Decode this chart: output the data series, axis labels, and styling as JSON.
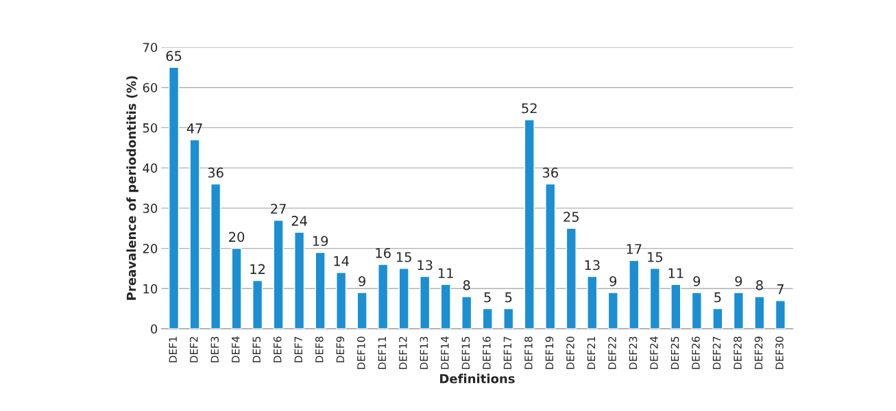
{
  "chart_data": {
    "type": "bar",
    "xlabel": "Definitions",
    "ylabel": "Preavalence of periodontitis (%)",
    "categories": [
      "DEF1",
      "DEF2",
      "DEF3",
      "DEF4",
      "DEF5",
      "DEF6",
      "DEF7",
      "DEF8",
      "DEF9",
      "DEF10",
      "DEF11",
      "DEF12",
      "DEF13",
      "DEF14",
      "DEF15",
      "DEF16",
      "DEF17",
      "DEF18",
      "DEF19",
      "DEF20",
      "DEF21",
      "DEF22",
      "DEF23",
      "DEF24",
      "DEF25",
      "DEF26",
      "DEF27",
      "DEF28",
      "DEF29",
      "DEF30"
    ],
    "values": [
      65,
      47,
      36,
      20,
      12,
      27,
      24,
      19,
      14,
      9,
      16,
      15,
      13,
      11,
      8,
      5,
      5,
      52,
      36,
      25,
      13,
      9,
      17,
      15,
      11,
      9,
      5,
      9,
      8,
      7
    ],
    "color": "#1b8fd2",
    "ylim": [
      0,
      70
    ],
    "yticks": [
      0,
      10,
      20,
      30,
      40,
      50,
      60,
      70
    ],
    "grid": "y",
    "data_labels": true
  }
}
